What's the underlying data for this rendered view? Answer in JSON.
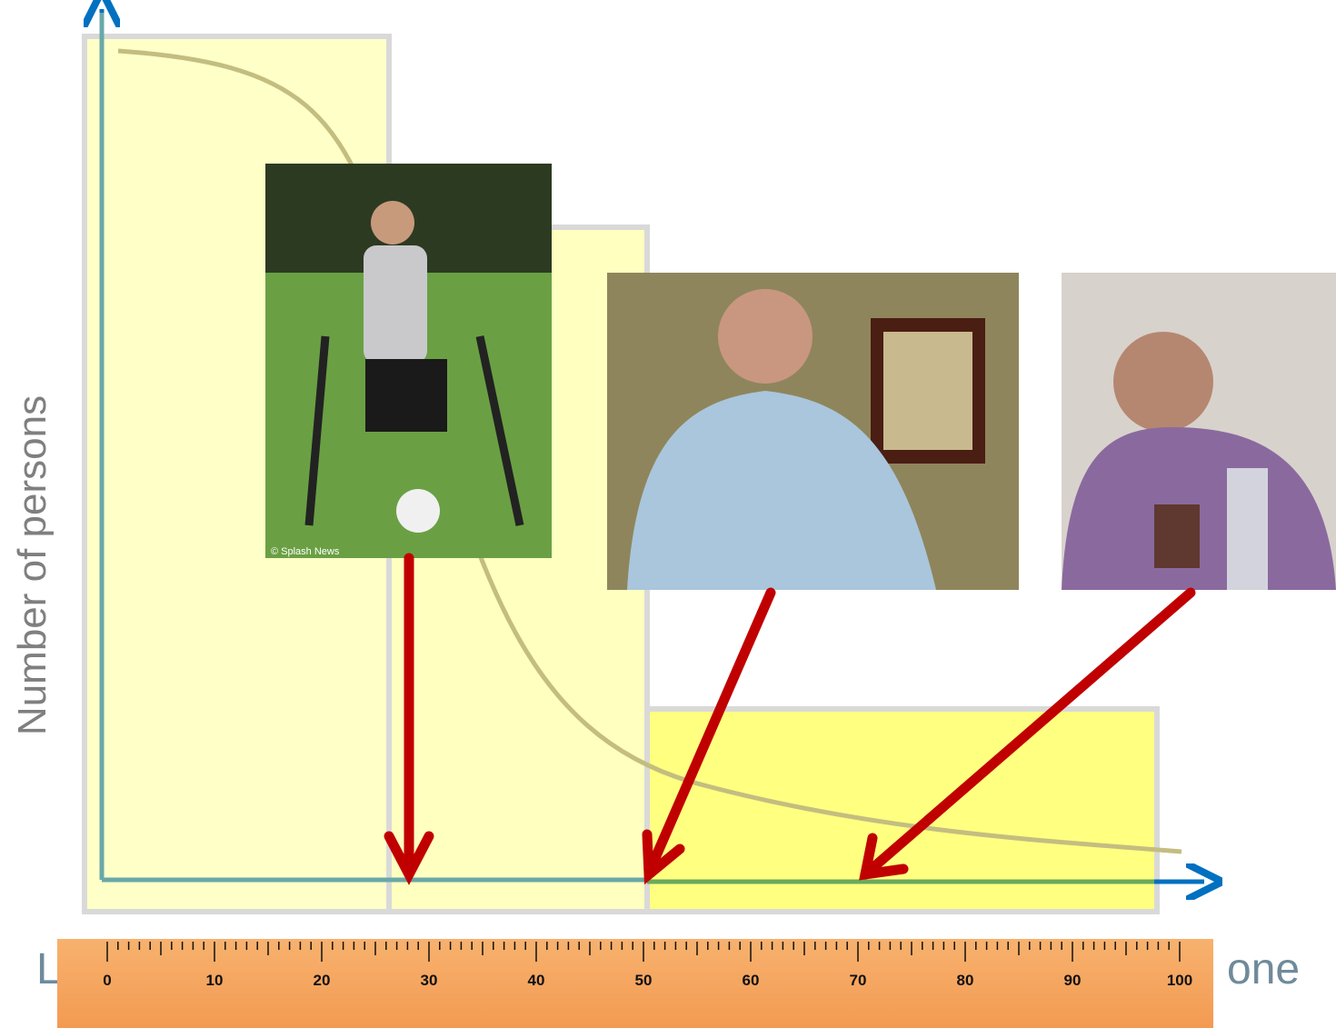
{
  "axis_label_y": "Number of persons",
  "axis_label_x_left": "L",
  "axis_label_x_right": "one",
  "photo_credit": "© Splash News",
  "ruler": {
    "labels": [
      "0",
      "10",
      "20",
      "30",
      "40",
      "50",
      "60",
      "70",
      "80",
      "90",
      "100"
    ]
  }
}
